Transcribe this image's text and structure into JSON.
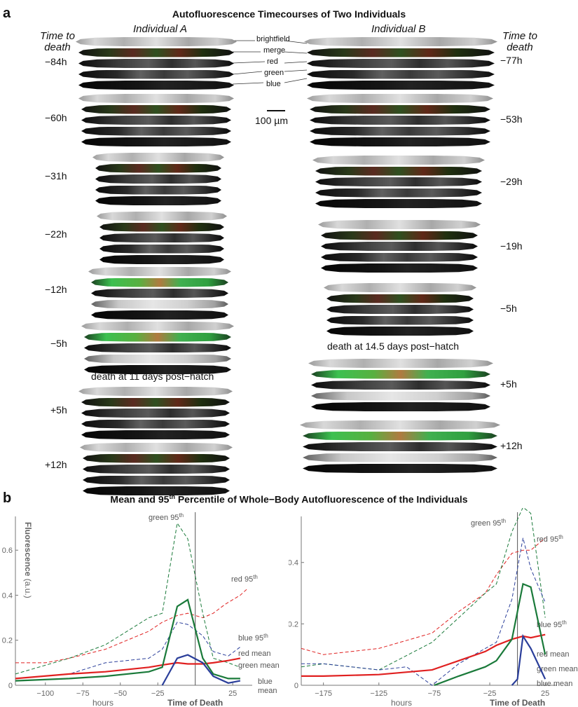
{
  "panel_a": {
    "letter": "a",
    "title": "Autofluorescence Timecourses of Two Individuals",
    "individual_a_label": "Individual A",
    "individual_b_label": "Individual B",
    "time_to_death_line1": "Time to",
    "time_to_death_line2": "death",
    "channels": [
      "brightfield",
      "merge",
      "red",
      "green",
      "blue"
    ],
    "scale_bar_label": "100 µm",
    "individual_a": {
      "timepoints": [
        "−84h",
        "−60h",
        "−31h",
        "−22h",
        "−12h",
        "−5h",
        "+5h",
        "+12h"
      ],
      "death_text": "death at 11 days post−hatch"
    },
    "individual_b": {
      "timepoints": [
        "−77h",
        "−53h",
        "−29h",
        "−19h",
        "−5h",
        "+5h",
        "+12h"
      ],
      "death_text": "death at 14.5 days post−hatch"
    }
  },
  "panel_b": {
    "letter": "b",
    "title_prefix": "Mean and 95",
    "title_sup": "th",
    "title_suffix": " Percentile of Whole−Body Autofluorescence of the Individuals",
    "colors": {
      "red": "#e02020",
      "green": "#1a7a3a",
      "blue": "#2a3e9a",
      "axis": "#777777"
    }
  },
  "chart_data": [
    {
      "type": "line",
      "panel": "left",
      "ylabel": "Fluorescence",
      "ylabel_unit": "(a.u.)",
      "xlabel": "hours",
      "xlabel_death": "Time of Death",
      "xlim": [
        -120,
        38
      ],
      "ylim": [
        0,
        0.75
      ],
      "xticks": [
        -100,
        -75,
        -50,
        -25,
        25
      ],
      "yticks": [
        0,
        0.2,
        0.4,
        0.6
      ],
      "ytick_labels": [
        "0",
        "0.2",
        "0.4",
        "0.6"
      ],
      "xtick_labels": [
        "−100",
        "−75",
        "−50",
        "−25",
        "25"
      ],
      "death_x": 0,
      "series": [
        {
          "name": "red 95th",
          "label": "red 95",
          "sup": "th",
          "color": "red",
          "dash": true,
          "x": [
            -120,
            -100,
            -84,
            -60,
            -31,
            -22,
            -12,
            -5,
            5,
            12,
            20,
            30,
            35
          ],
          "y": [
            0.1,
            0.1,
            0.12,
            0.16,
            0.24,
            0.28,
            0.31,
            0.32,
            0.3,
            0.32,
            0.36,
            0.4,
            0.43
          ]
        },
        {
          "name": "green 95th",
          "label": "green 95",
          "sup": "th",
          "color": "green",
          "dash": true,
          "x": [
            -120,
            -84,
            -60,
            -31,
            -22,
            -12,
            -5,
            5,
            12,
            22,
            30
          ],
          "y": [
            0.05,
            0.12,
            0.18,
            0.3,
            0.32,
            0.72,
            0.65,
            0.32,
            0.12,
            0.1,
            0.08
          ]
        },
        {
          "name": "blue 95th",
          "label": "blue 95",
          "sup": "th",
          "color": "blue",
          "dash": true,
          "x": [
            -120,
            -84,
            -60,
            -31,
            -22,
            -12,
            -5,
            5,
            12,
            22,
            30
          ],
          "y": [
            0.03,
            0.05,
            0.1,
            0.12,
            0.16,
            0.28,
            0.27,
            0.22,
            0.15,
            0.13,
            0.17
          ]
        },
        {
          "name": "red mean",
          "label": "red mean",
          "color": "red",
          "dash": false,
          "x": [
            -120,
            -84,
            -60,
            -31,
            -22,
            -12,
            -5,
            5,
            12,
            22,
            30
          ],
          "y": [
            0.03,
            0.05,
            0.06,
            0.08,
            0.09,
            0.1,
            0.095,
            0.095,
            0.1,
            0.11,
            0.12
          ]
        },
        {
          "name": "green mean",
          "label": "green mean",
          "color": "green",
          "dash": false,
          "x": [
            -120,
            -84,
            -60,
            -31,
            -22,
            -12,
            -5,
            5,
            12,
            22,
            30
          ],
          "y": [
            0.02,
            0.03,
            0.04,
            0.06,
            0.08,
            0.35,
            0.38,
            0.12,
            0.05,
            0.03,
            0.03
          ]
        },
        {
          "name": "blue mean",
          "label": "blue",
          "label2": "mean",
          "color": "blue",
          "dash": false,
          "x": [
            -22,
            -12,
            -5,
            5,
            12,
            22,
            30
          ],
          "y": [
            0.0,
            0.12,
            0.135,
            0.1,
            0.04,
            0.01,
            0.02
          ]
        }
      ]
    },
    {
      "type": "line",
      "panel": "right",
      "xlabel": "hours",
      "xlabel_death": "Time of Death",
      "xlim": [
        -195,
        35
      ],
      "ylim": [
        0,
        0.55
      ],
      "xticks": [
        -175,
        -125,
        -75,
        -25,
        25
      ],
      "yticks": [
        0,
        0.2,
        0.4
      ],
      "ytick_labels": [
        "0",
        "0.2",
        "0.4"
      ],
      "xtick_labels": [
        "−175",
        "−125",
        "−75",
        "−25",
        "25"
      ],
      "death_x": 0,
      "series": [
        {
          "name": "red 95th",
          "label": "red 95",
          "sup": "th",
          "color": "red",
          "dash": true,
          "x": [
            -195,
            -175,
            -125,
            -77,
            -53,
            -29,
            -19,
            -5,
            5,
            12,
            25
          ],
          "y": [
            0.12,
            0.1,
            0.12,
            0.17,
            0.24,
            0.3,
            0.36,
            0.43,
            0.44,
            0.44,
            0.48
          ]
        },
        {
          "name": "green 95th",
          "label": "green 95",
          "sup": "th",
          "color": "green",
          "dash": true,
          "x": [
            -195,
            -175,
            -125,
            -77,
            -53,
            -29,
            -19,
            -5,
            5,
            12,
            25
          ],
          "y": [
            0.06,
            0.07,
            0.05,
            0.14,
            0.22,
            0.3,
            0.33,
            0.5,
            0.58,
            0.56,
            0.22
          ]
        },
        {
          "name": "blue 95th",
          "label": "blue 95",
          "sup": "th",
          "color": "blue",
          "dash": true,
          "x": [
            -195,
            -175,
            -125,
            -100,
            -77,
            -53,
            -29,
            -19,
            -5,
            5,
            12,
            25
          ],
          "y": [
            0.07,
            0.07,
            0.05,
            0.06,
            0.0,
            0.07,
            0.12,
            0.14,
            0.28,
            0.48,
            0.38,
            0.27
          ]
        },
        {
          "name": "red mean",
          "label": "red mean",
          "color": "red",
          "dash": false,
          "x": [
            -195,
            -175,
            -125,
            -77,
            -53,
            -29,
            -19,
            -5,
            5,
            12,
            25
          ],
          "y": [
            0.03,
            0.03,
            0.035,
            0.05,
            0.08,
            0.11,
            0.13,
            0.15,
            0.16,
            0.155,
            0.165
          ]
        },
        {
          "name": "green mean",
          "label": "green mean",
          "color": "green",
          "dash": false,
          "x": [
            -75,
            -53,
            -29,
            -19,
            -5,
            5,
            12,
            25
          ],
          "y": [
            0.0,
            0.03,
            0.06,
            0.08,
            0.15,
            0.33,
            0.32,
            0.1
          ]
        },
        {
          "name": "blue mean",
          "label": "blue mean",
          "color": "blue",
          "dash": false,
          "x": [
            -5,
            0,
            5,
            12,
            25
          ],
          "y": [
            0.0,
            0.02,
            0.16,
            0.12,
            0.02
          ]
        }
      ]
    }
  ]
}
